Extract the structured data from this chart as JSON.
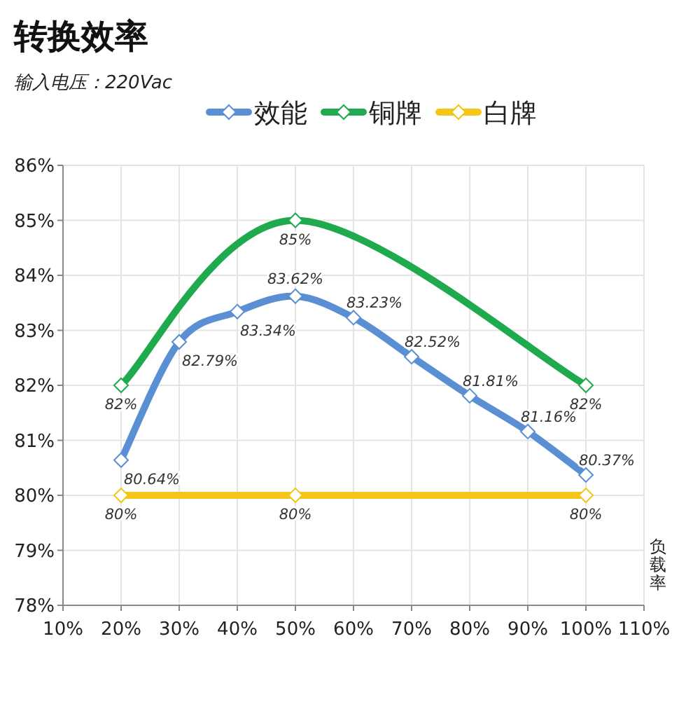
{
  "chart_data": {
    "type": "line",
    "title": "转换效率",
    "subtitle": "输入电压：220Vac",
    "xlabel": "负载率",
    "x": [
      20,
      30,
      40,
      50,
      60,
      70,
      80,
      90,
      100
    ],
    "series": [
      {
        "name": "效能",
        "color": "#5b8fd4",
        "values": [
          80.64,
          82.79,
          83.34,
          83.62,
          83.23,
          82.52,
          81.81,
          81.16,
          80.37
        ],
        "value_labels": [
          "80.64%",
          "82.79%",
          "83.34%",
          "83.62%",
          "83.23%",
          "82.52%",
          "81.81%",
          "81.16%",
          "80.37%"
        ]
      },
      {
        "name": "铜牌",
        "color": "#1faa4e",
        "x": [
          20,
          50,
          100
        ],
        "values": [
          82,
          85,
          82
        ],
        "value_labels": [
          "82%",
          "85%",
          "82%"
        ]
      },
      {
        "name": "白牌",
        "color": "#f5c518",
        "x": [
          20,
          50,
          100
        ],
        "values": [
          80,
          80,
          80
        ],
        "value_labels": [
          "80%",
          "80%",
          "80%"
        ]
      }
    ],
    "xlim": [
      10,
      110
    ],
    "ylim": [
      78,
      86
    ],
    "xticks": [
      {
        "value": 10,
        "label": "10%"
      },
      {
        "value": 20,
        "label": "20%"
      },
      {
        "value": 30,
        "label": "30%"
      },
      {
        "value": 40,
        "label": "40%"
      },
      {
        "value": 50,
        "label": "50%"
      },
      {
        "value": 60,
        "label": "60%"
      },
      {
        "value": 70,
        "label": "70%"
      },
      {
        "value": 80,
        "label": "80%"
      },
      {
        "value": 90,
        "label": "90%"
      },
      {
        "value": 100,
        "label": "100%"
      },
      {
        "value": 110,
        "label": "110%"
      }
    ],
    "yticks": [
      {
        "value": 78,
        "label": "78%"
      },
      {
        "value": 79,
        "label": "79%"
      },
      {
        "value": 80,
        "label": "80%"
      },
      {
        "value": 81,
        "label": "81%"
      },
      {
        "value": 82,
        "label": "82%"
      },
      {
        "value": 83,
        "label": "83%"
      },
      {
        "value": 84,
        "label": "84%"
      },
      {
        "value": 85,
        "label": "85%"
      },
      {
        "value": 86,
        "label": "86%"
      }
    ],
    "grid": true,
    "legend": "top",
    "marker": "diamond",
    "line_style": "solid"
  }
}
